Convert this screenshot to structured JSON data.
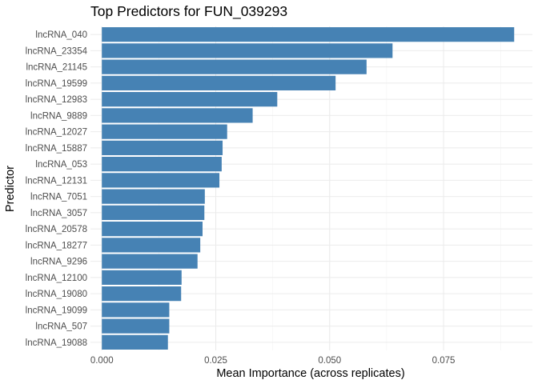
{
  "chart_data": {
    "type": "bar",
    "orientation": "horizontal",
    "title": "Top Predictors for FUN_039293",
    "xlabel": "Mean Importance (across replicates)",
    "ylabel": "Predictor",
    "xlim": [
      -0.0025,
      0.0945
    ],
    "xticks": [
      0.0,
      0.025,
      0.05,
      0.075
    ],
    "xtick_labels": [
      "0.000",
      "0.025",
      "0.050",
      "0.075"
    ],
    "grid": true,
    "bar_color": "#4682b4",
    "categories": [
      "lncRNA_040",
      "lncRNA_23354",
      "lncRNA_21145",
      "lncRNA_19599",
      "lncRNA_12983",
      "lncRNA_9889",
      "lncRNA_12027",
      "lncRNA_15887",
      "lncRNA_053",
      "lncRNA_12131",
      "lncRNA_7051",
      "lncRNA_3057",
      "lncRNA_20578",
      "lncRNA_18277",
      "lncRNA_9296",
      "lncRNA_12100",
      "lncRNA_19080",
      "lncRNA_19099",
      "lncRNA_507",
      "lncRNA_19088"
    ],
    "values": [
      0.0905,
      0.0638,
      0.0581,
      0.0513,
      0.0385,
      0.0331,
      0.0275,
      0.0265,
      0.0263,
      0.0258,
      0.0226,
      0.0225,
      0.0221,
      0.0216,
      0.021,
      0.0175,
      0.0174,
      0.0148,
      0.0148,
      0.0145
    ]
  }
}
